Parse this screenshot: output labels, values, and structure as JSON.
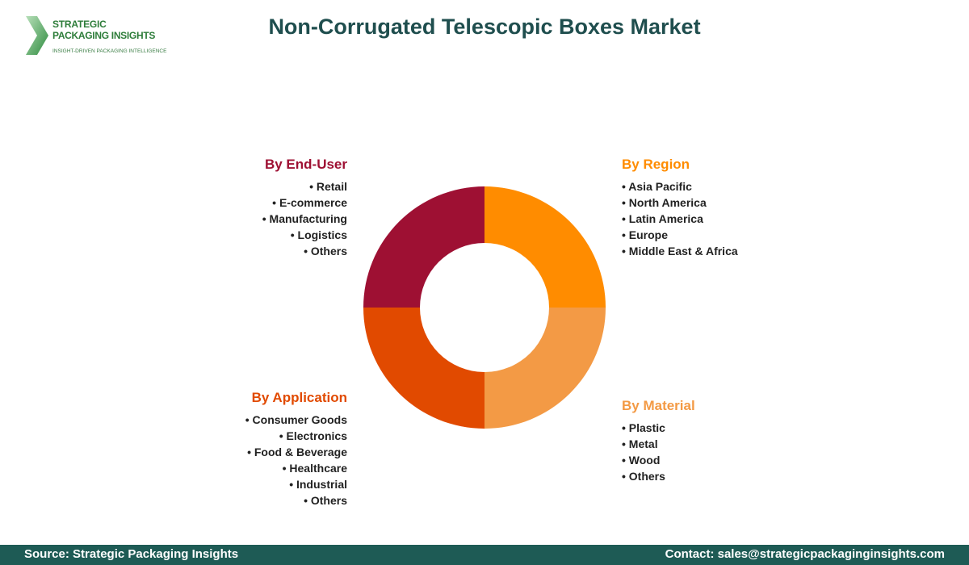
{
  "logo": {
    "line1": "STRATEGIC",
    "line2": "PACKAGING INSIGHTS",
    "tagline": "INSIGHT-DRIVEN PACKAGING INTELLIGENCE"
  },
  "title": "Non-Corrugated Telescopic Boxes Market",
  "segments": [
    {
      "id": "end-user",
      "title": "By End-User",
      "color": "#9e1033",
      "items": [
        "Retail",
        "E-commerce",
        "Manufacturing",
        "Logistics",
        "Others"
      ]
    },
    {
      "id": "region",
      "title": "By Region",
      "color": "#ff8c00",
      "items": [
        "Asia Pacific",
        "North America",
        "Latin America",
        "Europe",
        "Middle East & Africa"
      ]
    },
    {
      "id": "application",
      "title": "By Application",
      "color": "#e14a00",
      "items": [
        "Consumer Goods",
        "Electronics",
        "Food & Beverage",
        "Healthcare",
        "Industrial",
        "Others"
      ]
    },
    {
      "id": "material",
      "title": "By Material",
      "color": "#f39a45",
      "items": [
        "Plastic",
        "Metal",
        "Wood",
        "Others"
      ]
    }
  ],
  "footer": {
    "source": "Source: Strategic Packaging Insights",
    "contact": "Contact: sales@strategicpackaginginsights.com"
  }
}
